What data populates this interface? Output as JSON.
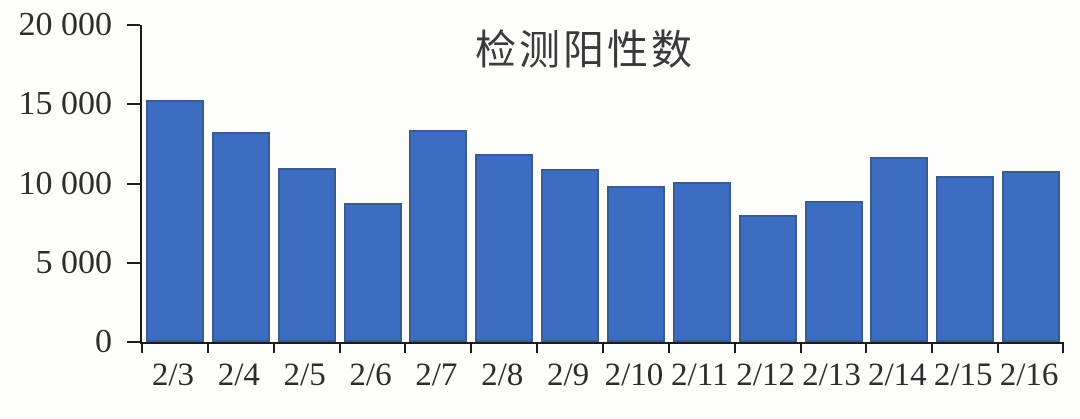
{
  "chart_data": {
    "type": "bar",
    "title": "检测阳性数",
    "categories": [
      "2/3",
      "2/4",
      "2/5",
      "2/6",
      "2/7",
      "2/8",
      "2/9",
      "2/10",
      "2/11",
      "2/12",
      "2/13",
      "2/14",
      "2/15",
      "2/16"
    ],
    "values": [
      15250,
      13250,
      11000,
      8800,
      13400,
      11850,
      10900,
      9850,
      10100,
      8000,
      8900,
      11650,
      10450,
      10800
    ],
    "xlabel": "",
    "ylabel": "",
    "ylim": [
      0,
      20000
    ],
    "ytick_values": [
      0,
      5000,
      10000,
      15000,
      20000
    ],
    "ytick_labels": [
      "0",
      "5 000",
      "10 000",
      "15 000",
      "20 000"
    ],
    "legend_position": "none",
    "grid": false,
    "colors": {
      "bar_fill": "#3d6cc3",
      "bar_border": "#3a5a92",
      "axis": "#1c1c1c",
      "text": "#2d2d2d",
      "background": "#fdfdfc"
    }
  }
}
